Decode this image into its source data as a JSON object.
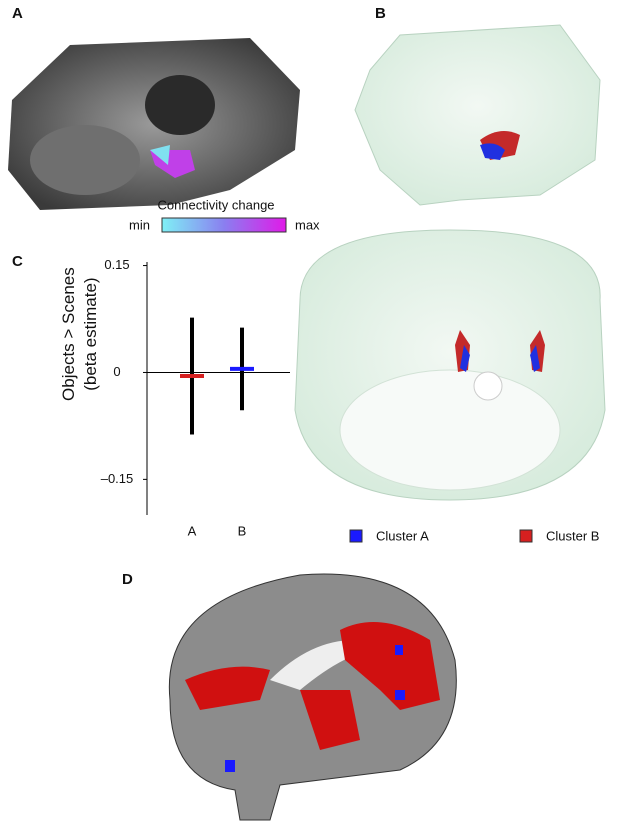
{
  "panels": {
    "a": "A",
    "b": "B",
    "c": "C",
    "d": "D"
  },
  "colorbar": {
    "title": "Connectivity change",
    "min": "min",
    "max": "max"
  },
  "chart_data": {
    "type": "errorbar",
    "y_label": [
      "Objects > Scenes",
      "(beta estimate)"
    ],
    "categories": [
      "A",
      "B"
    ],
    "values": [
      -0.005,
      0.005
    ],
    "errors": [
      0.082,
      0.058
    ],
    "colors": [
      "#d62020",
      "#1a1aff"
    ],
    "error_color": "#000000",
    "ylim": [
      -0.2,
      0.155
    ],
    "yticks": [
      {
        "value": -0.15,
        "label": "–0.15"
      },
      0,
      0.15
    ]
  },
  "legend": [
    {
      "name": "Cluster A",
      "color": "#1a1aff"
    },
    {
      "name": "Cluster B",
      "color": "#d62020"
    }
  ]
}
